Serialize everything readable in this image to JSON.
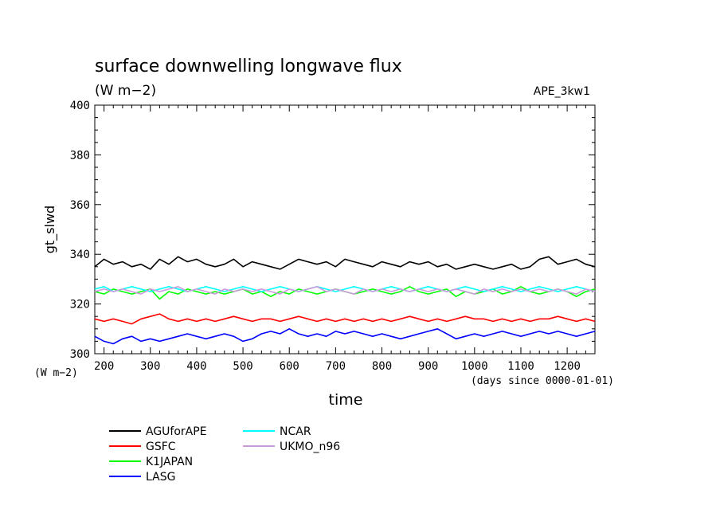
{
  "chart_data": {
    "type": "line",
    "title": "surface downwelling longwave flux",
    "units": "(W m−2)",
    "experiment": "APE_3kw1",
    "ylabel": "gt_slwd",
    "y_units_label": "(W m−2)",
    "xlabel": "time",
    "x_units_label": "(days since 0000-01-01)",
    "xlim": [
      180,
      1260
    ],
    "ylim": [
      300,
      400
    ],
    "x_ticks": [
      200,
      300,
      400,
      500,
      600,
      700,
      800,
      900,
      1000,
      1100,
      1200
    ],
    "y_ticks": [
      300,
      320,
      340,
      360,
      380,
      400
    ],
    "x_tick_labels": [
      "200",
      "300",
      "400",
      "500",
      "600",
      "700",
      "800",
      "900",
      "1000",
      "1100",
      "1200"
    ],
    "y_tick_labels": [
      "300",
      "320",
      "340",
      "360",
      "380",
      "400"
    ],
    "grid": false,
    "legend_position": "bottom-left",
    "x": [
      180,
      200,
      220,
      240,
      260,
      280,
      300,
      320,
      340,
      360,
      380,
      400,
      420,
      440,
      460,
      480,
      500,
      520,
      540,
      560,
      580,
      600,
      620,
      640,
      660,
      680,
      700,
      720,
      740,
      760,
      780,
      800,
      820,
      840,
      860,
      880,
      900,
      920,
      940,
      960,
      980,
      1000,
      1020,
      1040,
      1060,
      1080,
      1100,
      1120,
      1140,
      1160,
      1180,
      1200,
      1220,
      1240,
      1260
    ],
    "series": [
      {
        "name": "AGUforAPE",
        "color": "#000000",
        "values": [
          335,
          338,
          336,
          337,
          335,
          336,
          334,
          338,
          336,
          339,
          337,
          338,
          336,
          335,
          336,
          338,
          335,
          337,
          336,
          335,
          334,
          336,
          338,
          337,
          336,
          337,
          335,
          338,
          337,
          336,
          335,
          337,
          336,
          335,
          337,
          336,
          337,
          335,
          336,
          334,
          335,
          336,
          335,
          334,
          335,
          336,
          334,
          335,
          338,
          339,
          336,
          337,
          338,
          336,
          335
        ]
      },
      {
        "name": "GSFC",
        "color": "#ff0000",
        "values": [
          314,
          313,
          314,
          313,
          312,
          314,
          315,
          316,
          314,
          313,
          314,
          313,
          314,
          313,
          314,
          315,
          314,
          313,
          314,
          314,
          313,
          314,
          315,
          314,
          313,
          314,
          313,
          314,
          313,
          314,
          313,
          314,
          313,
          314,
          315,
          314,
          313,
          314,
          313,
          314,
          315,
          314,
          314,
          313,
          314,
          313,
          314,
          313,
          314,
          314,
          315,
          314,
          313,
          314,
          313
        ]
      },
      {
        "name": "K1JAPAN",
        "color": "#00ff00",
        "values": [
          325,
          324,
          326,
          325,
          324,
          325,
          326,
          322,
          325,
          324,
          326,
          325,
          324,
          325,
          324,
          325,
          326,
          324,
          325,
          323,
          325,
          324,
          326,
          325,
          324,
          325,
          326,
          325,
          324,
          325,
          326,
          325,
          324,
          325,
          327,
          325,
          324,
          325,
          326,
          323,
          325,
          324,
          325,
          326,
          324,
          325,
          327,
          325,
          324,
          325,
          326,
          325,
          323,
          325,
          326
        ]
      },
      {
        "name": "LASG",
        "color": "#0000ff",
        "values": [
          307,
          305,
          304,
          306,
          307,
          305,
          306,
          305,
          306,
          307,
          308,
          307,
          306,
          307,
          308,
          307,
          305,
          306,
          308,
          309,
          308,
          310,
          308,
          307,
          308,
          307,
          309,
          308,
          309,
          308,
          307,
          308,
          307,
          306,
          307,
          308,
          309,
          310,
          308,
          306,
          307,
          308,
          307,
          308,
          309,
          308,
          307,
          308,
          309,
          308,
          309,
          308,
          307,
          308,
          309
        ]
      },
      {
        "name": "NCAR",
        "color": "#00ffff",
        "values": [
          326,
          327,
          325,
          326,
          327,
          326,
          325,
          326,
          327,
          326,
          325,
          326,
          327,
          326,
          325,
          326,
          327,
          326,
          325,
          326,
          327,
          326,
          325,
          326,
          327,
          326,
          325,
          326,
          327,
          326,
          325,
          326,
          327,
          326,
          325,
          326,
          327,
          326,
          325,
          326,
          327,
          326,
          325,
          326,
          327,
          326,
          325,
          326,
          327,
          326,
          325,
          326,
          327,
          326,
          325
        ]
      },
      {
        "name": "UKMO_n96",
        "color": "#cc99dd",
        "values": [
          325,
          326,
          325,
          326,
          325,
          324,
          326,
          325,
          326,
          327,
          325,
          326,
          325,
          324,
          326,
          325,
          326,
          325,
          326,
          325,
          324,
          326,
          325,
          326,
          327,
          325,
          326,
          325,
          324,
          326,
          325,
          326,
          325,
          326,
          325,
          326,
          325,
          326,
          325,
          326,
          325,
          324,
          326,
          325,
          326,
          325,
          326,
          325,
          326,
          325,
          326,
          325,
          324,
          326,
          325
        ]
      }
    ]
  }
}
